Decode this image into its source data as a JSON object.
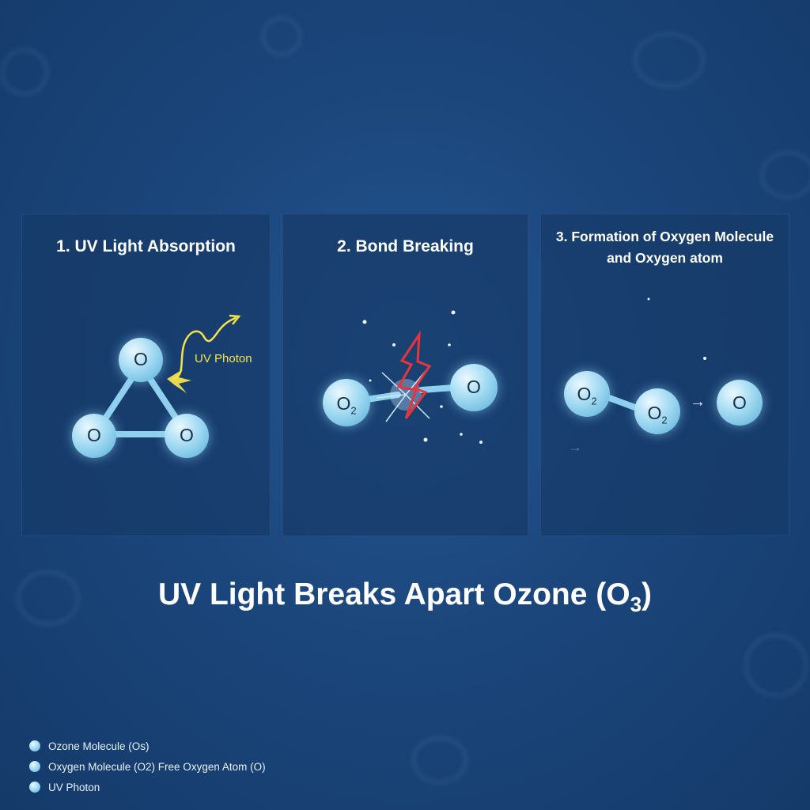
{
  "panels": [
    {
      "title": "1. UV Light Absorption",
      "atoms": [
        "O",
        "O",
        "O"
      ],
      "photon_label": "UV Photon"
    },
    {
      "title": "2. Bond Breaking",
      "atoms": [
        {
          "symbol": "O",
          "subscript": "2"
        },
        {
          "symbol": "O",
          "subscript": ""
        }
      ]
    },
    {
      "title_line1": "3. Formation of Oxygen Molecule",
      "title_line2": "and Oxygen atom",
      "atoms": [
        {
          "symbol": "O",
          "subscript": "2"
        },
        {
          "symbol": "O",
          "subscript": "2"
        },
        {
          "symbol": "O",
          "subscript": ""
        }
      ],
      "arrow": "→"
    }
  ],
  "main_title": {
    "text": "UV Light Breaks Apart Ozone (O",
    "subscript": "3",
    "close": ")"
  },
  "legend": [
    {
      "label": "Ozone Molecule (Oѕ)"
    },
    {
      "label": "Oxygen Molecule (O2) Free Oxygen Atom (O)"
    },
    {
      "label": "UV Photon"
    }
  ],
  "colors": {
    "background": "#1b467c",
    "panel": "#163a68",
    "atom": "#a9def4",
    "photon": "#f3e24a",
    "lightning": "#e8343c",
    "text": "#ffffff"
  }
}
